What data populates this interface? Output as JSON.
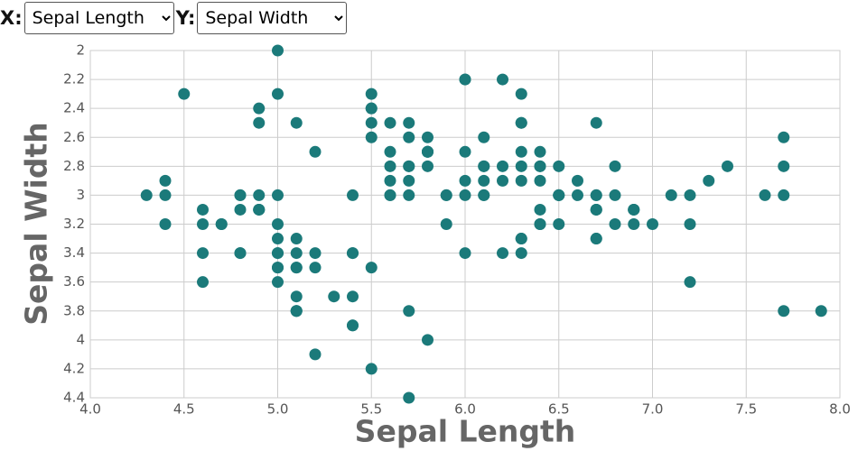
{
  "controls": {
    "x_label": "X:",
    "x_selected": "Sepal Length",
    "y_label": "Y:",
    "y_selected": "Sepal Width"
  },
  "chart_data": {
    "type": "scatter",
    "x_label": "Sepal Length",
    "y_label": "Sepal Width",
    "color": "#1b7a7a",
    "grid": true,
    "y_inverted": true,
    "xlim": [
      4,
      8
    ],
    "ylim": [
      2,
      4.4
    ],
    "xticks": [
      {
        "value": 4,
        "label": "4.0"
      },
      4.5,
      {
        "value": 5,
        "label": "5.0"
      },
      5.5,
      {
        "value": 6,
        "label": "6.0"
      },
      6.5,
      {
        "value": 7,
        "label": "7.0"
      },
      7.5,
      {
        "value": 8,
        "label": "8.0"
      }
    ],
    "yticks": [
      2,
      2.2,
      2.4,
      2.6,
      2.8,
      3,
      3.2,
      3.4,
      3.6,
      3.8,
      4,
      4.2,
      4.4
    ],
    "x": [
      5.1,
      4.9,
      4.7,
      4.6,
      5.0,
      5.4,
      4.6,
      5.0,
      4.4,
      4.9,
      5.4,
      4.8,
      4.8,
      4.3,
      5.8,
      5.7,
      5.4,
      5.1,
      5.7,
      5.1,
      5.4,
      5.1,
      4.6,
      5.1,
      4.8,
      5.0,
      5.0,
      5.2,
      5.2,
      4.7,
      4.8,
      5.4,
      5.2,
      5.5,
      4.9,
      5.0,
      5.5,
      4.9,
      4.4,
      5.1,
      5.0,
      4.5,
      4.4,
      5.0,
      5.1,
      4.8,
      5.1,
      4.6,
      5.3,
      5.0,
      7.0,
      6.4,
      6.9,
      5.5,
      6.5,
      5.7,
      6.3,
      4.9,
      6.6,
      5.2,
      5.0,
      5.9,
      6.0,
      6.1,
      5.6,
      6.7,
      5.6,
      5.8,
      6.2,
      5.6,
      5.9,
      6.1,
      6.3,
      6.1,
      6.4,
      6.6,
      6.8,
      6.7,
      6.0,
      5.7,
      5.5,
      5.5,
      5.8,
      6.0,
      5.4,
      6.0,
      6.7,
      6.3,
      5.6,
      5.5,
      5.5,
      6.1,
      5.8,
      5.0,
      5.6,
      5.7,
      5.7,
      6.2,
      5.1,
      5.7,
      6.3,
      5.8,
      7.1,
      6.3,
      6.5,
      7.6,
      4.9,
      7.3,
      6.7,
      7.2,
      6.5,
      6.4,
      6.8,
      5.7,
      5.8,
      6.4,
      6.5,
      7.7,
      7.7,
      6.0,
      6.9,
      5.6,
      7.7,
      6.3,
      6.7,
      7.2,
      6.2,
      6.1,
      6.4,
      7.2,
      7.4,
      7.9,
      6.4,
      6.3,
      6.1,
      7.7,
      6.3,
      6.4,
      6.0,
      6.9,
      6.7,
      6.9,
      5.8,
      6.8,
      6.7,
      6.7,
      6.3,
      6.5,
      6.2,
      5.9
    ],
    "values": [
      3.5,
      3.0,
      3.2,
      3.1,
      3.6,
      3.9,
      3.4,
      3.4,
      2.9,
      3.1,
      3.7,
      3.4,
      3.0,
      3.0,
      4.0,
      4.4,
      3.9,
      3.5,
      3.8,
      3.8,
      3.4,
      3.7,
      3.6,
      3.3,
      3.4,
      3.0,
      3.4,
      3.5,
      3.4,
      3.2,
      3.1,
      3.4,
      4.1,
      4.2,
      3.1,
      3.2,
      3.5,
      3.1,
      3.0,
      3.4,
      3.5,
      2.3,
      3.2,
      3.5,
      3.8,
      3.0,
      3.8,
      3.2,
      3.7,
      3.3,
      3.2,
      3.2,
      3.1,
      2.3,
      2.8,
      2.8,
      3.3,
      2.4,
      2.9,
      2.7,
      2.0,
      3.0,
      2.2,
      2.9,
      2.9,
      3.1,
      3.0,
      2.7,
      2.2,
      2.5,
      3.2,
      2.8,
      2.5,
      2.8,
      2.9,
      3.0,
      2.8,
      3.0,
      2.9,
      2.6,
      2.4,
      2.4,
      2.7,
      2.7,
      3.0,
      3.4,
      3.1,
      2.3,
      3.0,
      2.5,
      2.6,
      3.0,
      2.6,
      2.3,
      2.7,
      3.0,
      2.9,
      2.9,
      2.5,
      2.8,
      3.3,
      2.7,
      3.0,
      2.9,
      3.0,
      3.0,
      2.5,
      2.9,
      2.5,
      3.6,
      3.2,
      2.7,
      3.0,
      2.5,
      2.8,
      3.2,
      3.0,
      3.8,
      2.6,
      2.2,
      3.2,
      2.8,
      2.8,
      2.7,
      3.3,
      3.2,
      2.8,
      3.0,
      2.8,
      3.0,
      2.8,
      3.8,
      2.8,
      2.8,
      2.6,
      3.0,
      3.4,
      3.1,
      3.0,
      3.1,
      3.1,
      3.1,
      2.7,
      3.2,
      3.3,
      3.0,
      2.5,
      3.0,
      3.4,
      3.0
    ]
  }
}
